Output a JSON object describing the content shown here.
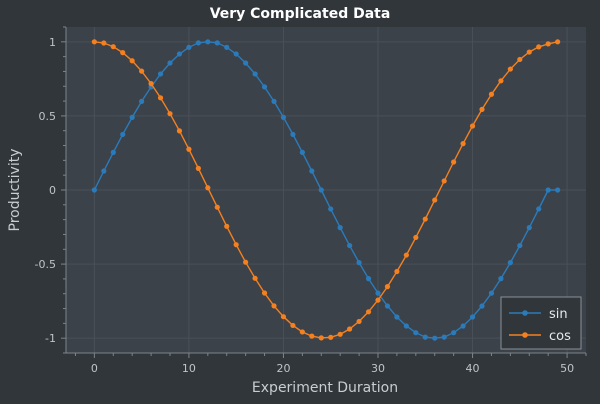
{
  "chart_data": {
    "type": "line",
    "title": "Very Complicated Data",
    "xlabel": "Experiment Duration",
    "ylabel": "Productivity",
    "xlim": [
      -3,
      52
    ],
    "ylim": [
      -1.1,
      1.1
    ],
    "xticks": [
      0,
      10,
      20,
      30,
      40,
      50
    ],
    "yticks": [
      -1,
      -0.5,
      0,
      0.5,
      1
    ],
    "xtick_labels": [
      "0",
      "10",
      "20",
      "30",
      "40",
      "50"
    ],
    "ytick_labels": [
      "-1",
      "-0.5",
      "0",
      "0.5",
      "1"
    ],
    "grid": true,
    "legend_position": "bottom-right",
    "x": [
      0,
      1,
      2,
      3,
      4,
      5,
      6,
      7,
      8,
      9,
      10,
      11,
      12,
      13,
      14,
      15,
      16,
      17,
      18,
      19,
      20,
      21,
      22,
      23,
      24,
      25,
      26,
      27,
      28,
      29,
      30,
      31,
      32,
      33,
      34,
      35,
      36,
      37,
      38,
      39,
      40,
      41,
      42,
      43,
      44,
      45,
      46,
      47,
      48,
      49
    ],
    "series": [
      {
        "name": "sin",
        "color": "#2b7bba",
        "values": [
          0.0,
          0.128,
          0.254,
          0.375,
          0.49,
          0.598,
          0.696,
          0.783,
          0.857,
          0.918,
          0.963,
          0.993,
          1.0,
          0.993,
          0.963,
          0.918,
          0.857,
          0.783,
          0.696,
          0.598,
          0.49,
          0.375,
          0.254,
          0.128,
          0.0,
          -0.128,
          -0.254,
          -0.375,
          -0.49,
          -0.598,
          -0.696,
          -0.783,
          -0.857,
          -0.918,
          -0.963,
          -0.993,
          -1.0,
          -0.993,
          -0.963,
          -0.918,
          -0.857,
          -0.783,
          -0.696,
          -0.598,
          -0.49,
          -0.375,
          -0.254,
          -0.128,
          0.0,
          0.0
        ]
      },
      {
        "name": "cos",
        "color": "#f4801f",
        "values": [
          1.0,
          0.992,
          0.967,
          0.927,
          0.872,
          0.802,
          0.718,
          0.622,
          0.515,
          0.399,
          0.275,
          0.146,
          0.015,
          -0.116,
          -0.245,
          -0.369,
          -0.487,
          -0.596,
          -0.695,
          -0.782,
          -0.855,
          -0.914,
          -0.958,
          -0.986,
          -0.998,
          -0.994,
          -0.974,
          -0.938,
          -0.887,
          -0.822,
          -0.743,
          -0.652,
          -0.55,
          -0.439,
          -0.32,
          -0.196,
          -0.068,
          0.061,
          0.189,
          0.313,
          0.432,
          0.544,
          0.646,
          0.737,
          0.816,
          0.881,
          0.931,
          0.966,
          0.986,
          1.0
        ]
      }
    ]
  }
}
